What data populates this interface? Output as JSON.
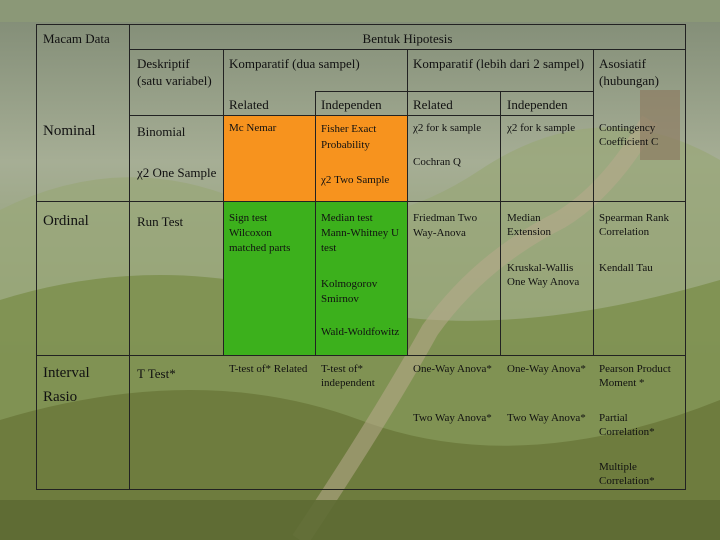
{
  "header": {
    "macam_data": "Macam Data",
    "bentuk_hipotesis": "Bentuk Hipotesis"
  },
  "columns": {
    "deskriptif": "Deskriptif (satu variabel)",
    "komparatif_dua": "Komparatif (dua sampel)",
    "komparatif_lebih": "Komparatif (lebih dari 2 sampel)",
    "asosiatif": "Asosiatif (hubungan)",
    "related_1": "Related",
    "independen_1": "Independen",
    "related_2": "Related",
    "independen_2": "Independen"
  },
  "rows": {
    "nominal": {
      "label": "Nominal",
      "deskriptif_1": "Binomial",
      "deskriptif_2": "χ2  One Sample",
      "related_1": "Mc Nemar",
      "independen_1a": "Fisher Exact Probability",
      "independen_1b": "χ2  Two Sample",
      "related_2a": "χ2 for k sample",
      "related_2b": "Cochran Q",
      "independen_2": "χ2 for k sample",
      "asosiatif": "Contingency Coefficient C"
    },
    "ordinal": {
      "label": "Ordinal",
      "deskriptif": "Run Test",
      "related_1": "Sign test Wilcoxon matched parts",
      "independen_1a": "Median test Mann-Whitney U test",
      "independen_1b": "Kolmogorov Smirnov",
      "independen_1c": "Wald-Woldfowitz",
      "related_2": "Friedman Two Way-Anova",
      "independen_2a": "Median Extension",
      "independen_2b": "Kruskal-Wallis One Way Anova",
      "asosiatif_a": "Spearman Rank Correlation",
      "asosiatif_b": "Kendall Tau"
    },
    "interval": {
      "label": "Interval Rasio",
      "deskriptif": "T Test*",
      "related_1": "T-test of* Related",
      "independen_1": "T-test of* independent",
      "related_2a": "One-Way Anova*",
      "related_2b": "Two Way Anova*",
      "independen_2a": "One-Way Anova*",
      "independen_2b": "Two Way Anova*",
      "asosiatif_a": "Pearson Product Moment *",
      "asosiatif_b": "Partial Correlation*",
      "asosiatif_c": "Multiple Correlation*"
    }
  },
  "colors": {
    "orange": "#f7931e",
    "green": "#3cb01c"
  }
}
